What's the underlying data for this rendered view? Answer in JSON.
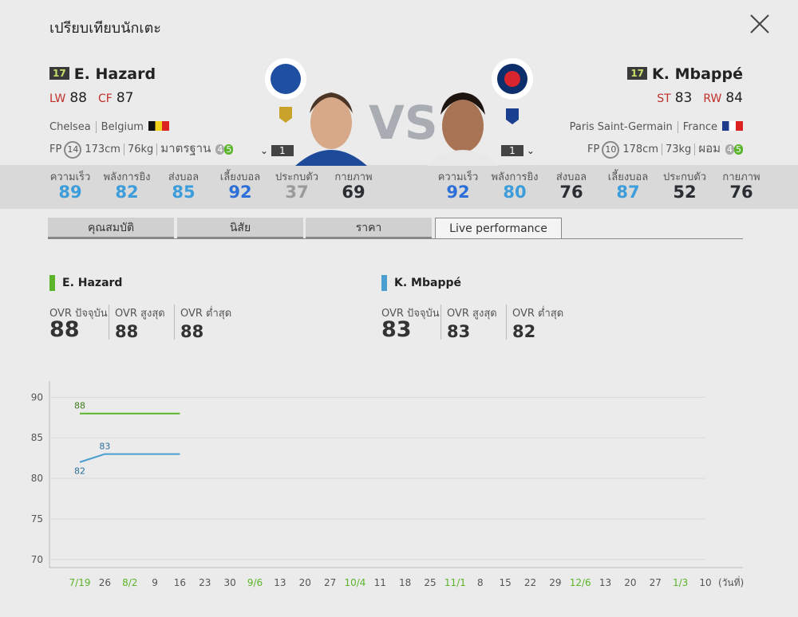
{
  "header": {
    "title": "เปรียบเทียบนักเตะ"
  },
  "vs": "VS",
  "players": [
    {
      "season": "17",
      "name": "E. Hazard",
      "positions": [
        {
          "pos": "LW",
          "ovr": 88
        },
        {
          "pos": "CF",
          "ovr": 87
        }
      ],
      "club": "Chelsea",
      "nation": "Belgium",
      "fp_label": "FP",
      "fp": 14,
      "height": "173cm",
      "weight": "76kg",
      "body": "มาตรฐาน",
      "weak_foot": 4,
      "skill": 5,
      "level": 1,
      "stats": [
        {
          "label": "ความเร็ว",
          "value": 89
        },
        {
          "label": "พลังการยิง",
          "value": 82
        },
        {
          "label": "ส่งบอล",
          "value": 85
        },
        {
          "label": "เลี้ยงบอล",
          "value": 92
        },
        {
          "label": "ประกบตัว",
          "value": 37
        },
        {
          "label": "กายภาพ",
          "value": 69
        }
      ],
      "ovr": [
        88,
        88,
        88
      ]
    },
    {
      "season": "17",
      "name": "K. Mbappé",
      "positions": [
        {
          "pos": "ST",
          "ovr": 83
        },
        {
          "pos": "RW",
          "ovr": 84
        }
      ],
      "club": "Paris Saint-Germain",
      "nation": "France",
      "fp_label": "FP",
      "fp": 10,
      "height": "178cm",
      "weight": "73kg",
      "body": "ผอม",
      "weak_foot": 4,
      "skill": 5,
      "level": 1,
      "stats": [
        {
          "label": "ความเร็ว",
          "value": 92
        },
        {
          "label": "พลังการยิง",
          "value": 80
        },
        {
          "label": "ส่งบอล",
          "value": 76
        },
        {
          "label": "เลี้ยงบอล",
          "value": 87
        },
        {
          "label": "ประกบตัว",
          "value": 52
        },
        {
          "label": "กายภาพ",
          "value": 76
        }
      ],
      "ovr": [
        83,
        83,
        82
      ]
    }
  ],
  "tabs": [
    "คุณสมบัติ",
    "นิสัย",
    "ราคา",
    "Live performance"
  ],
  "active_tab": 3,
  "ovr_labels": [
    "OVR ปัจจุบัน",
    "OVR สูงสุด",
    "OVR ต่ำสุด"
  ],
  "chart_data": {
    "type": "line",
    "x_label": "(วันที่)",
    "categories": [
      "7/19",
      "26",
      "8/2",
      "9",
      "16",
      "23",
      "30",
      "9/6",
      "13",
      "20",
      "27",
      "10/4",
      "11",
      "18",
      "25",
      "11/1",
      "8",
      "15",
      "22",
      "29",
      "12/6",
      "13",
      "20",
      "27",
      "1/3",
      "10"
    ],
    "series": [
      {
        "name": "E. Hazard",
        "color": "#5ab52a",
        "values": [
          88,
          88,
          88,
          88,
          88,
          null,
          null,
          null,
          null,
          null,
          null,
          null,
          null,
          null,
          null,
          null,
          null,
          null,
          null,
          null,
          null,
          null,
          null,
          null,
          null,
          null
        ]
      },
      {
        "name": "K. Mbappé",
        "color": "#4a9fd0",
        "values": [
          82,
          83,
          83,
          83,
          83,
          null,
          null,
          null,
          null,
          null,
          null,
          null,
          null,
          null,
          null,
          null,
          null,
          null,
          null,
          null,
          null,
          null,
          null,
          null,
          null,
          null
        ]
      }
    ],
    "ylim": [
      69,
      92
    ],
    "yticks": [
      70,
      75,
      80,
      85,
      90
    ],
    "grid": true
  }
}
